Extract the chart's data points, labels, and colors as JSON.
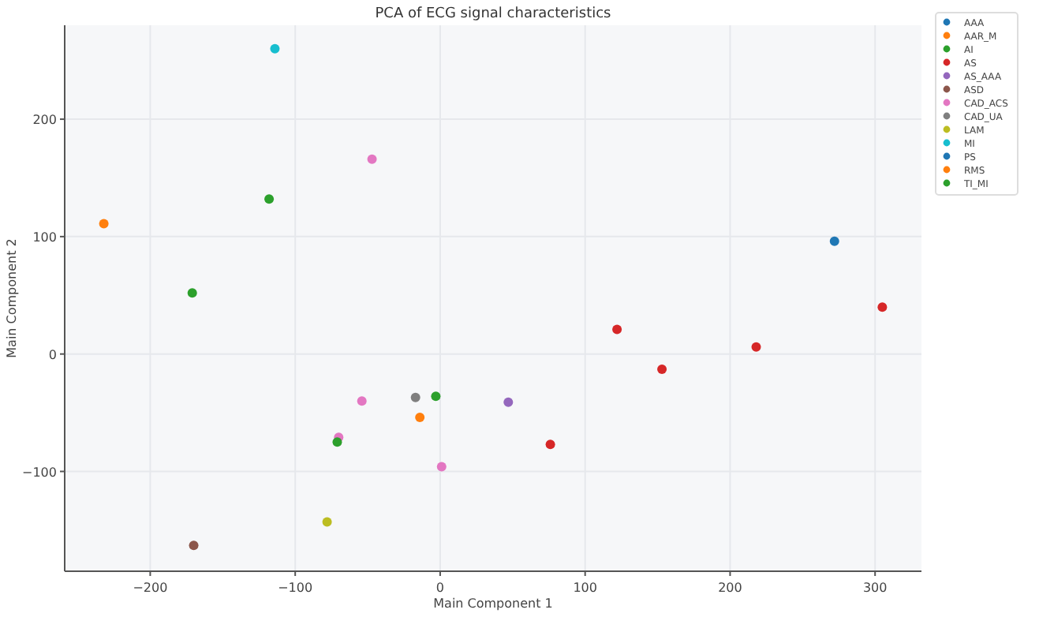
{
  "chart_data": {
    "type": "scatter",
    "title": "PCA of ECG signal characteristics",
    "xlabel": "Main Component 1",
    "ylabel": "Main Component 2",
    "xlim": [
      -259,
      332
    ],
    "ylim": [
      -185,
      280
    ],
    "xticks": [
      -200,
      -100,
      0,
      100,
      200,
      300
    ],
    "yticks": [
      -100,
      0,
      100,
      200
    ],
    "grid": true,
    "legend": "right",
    "marker": "circle",
    "series": [
      {
        "name": "AAA",
        "color": "#1f77b4",
        "x": [
          272
        ],
        "values": [
          96
        ]
      },
      {
        "name": "AAR_M",
        "color": "#ff7f0e",
        "x": [
          -14
        ],
        "values": [
          -54
        ]
      },
      {
        "name": "AI",
        "color": "#2ca02c",
        "x": [
          -118,
          -171
        ],
        "values": [
          132,
          52
        ]
      },
      {
        "name": "AS",
        "color": "#d62728",
        "x": [
          76,
          122,
          153,
          218,
          305
        ],
        "values": [
          -77,
          21,
          -13,
          6,
          40
        ]
      },
      {
        "name": "AS_AAA",
        "color": "#9467bd",
        "x": [
          47
        ],
        "values": [
          -41
        ]
      },
      {
        "name": "ASD",
        "color": "#8c564b",
        "x": [
          -170
        ],
        "values": [
          -163
        ]
      },
      {
        "name": "CAD_ACS",
        "color": "#e377c2",
        "x": [
          -47,
          -54,
          -70,
          1
        ],
        "values": [
          166,
          -40,
          -71,
          -96
        ]
      },
      {
        "name": "CAD_UA",
        "color": "#7f7f7f",
        "x": [
          -17
        ],
        "values": [
          -37
        ]
      },
      {
        "name": "LAM",
        "color": "#bcbd22",
        "x": [
          -78
        ],
        "values": [
          -143
        ]
      },
      {
        "name": "MI",
        "color": "#17becf",
        "x": [
          -114
        ],
        "values": [
          260
        ]
      },
      {
        "name": "PS",
        "color": "#1f77b4"
      },
      {
        "name": "RMS",
        "color": "#ff7f0e",
        "x": [
          -232
        ],
        "values": [
          111
        ]
      },
      {
        "name": "TI_MI",
        "color": "#2ca02c",
        "x": [
          -71,
          -3
        ],
        "values": [
          -75,
          -36
        ]
      }
    ]
  }
}
